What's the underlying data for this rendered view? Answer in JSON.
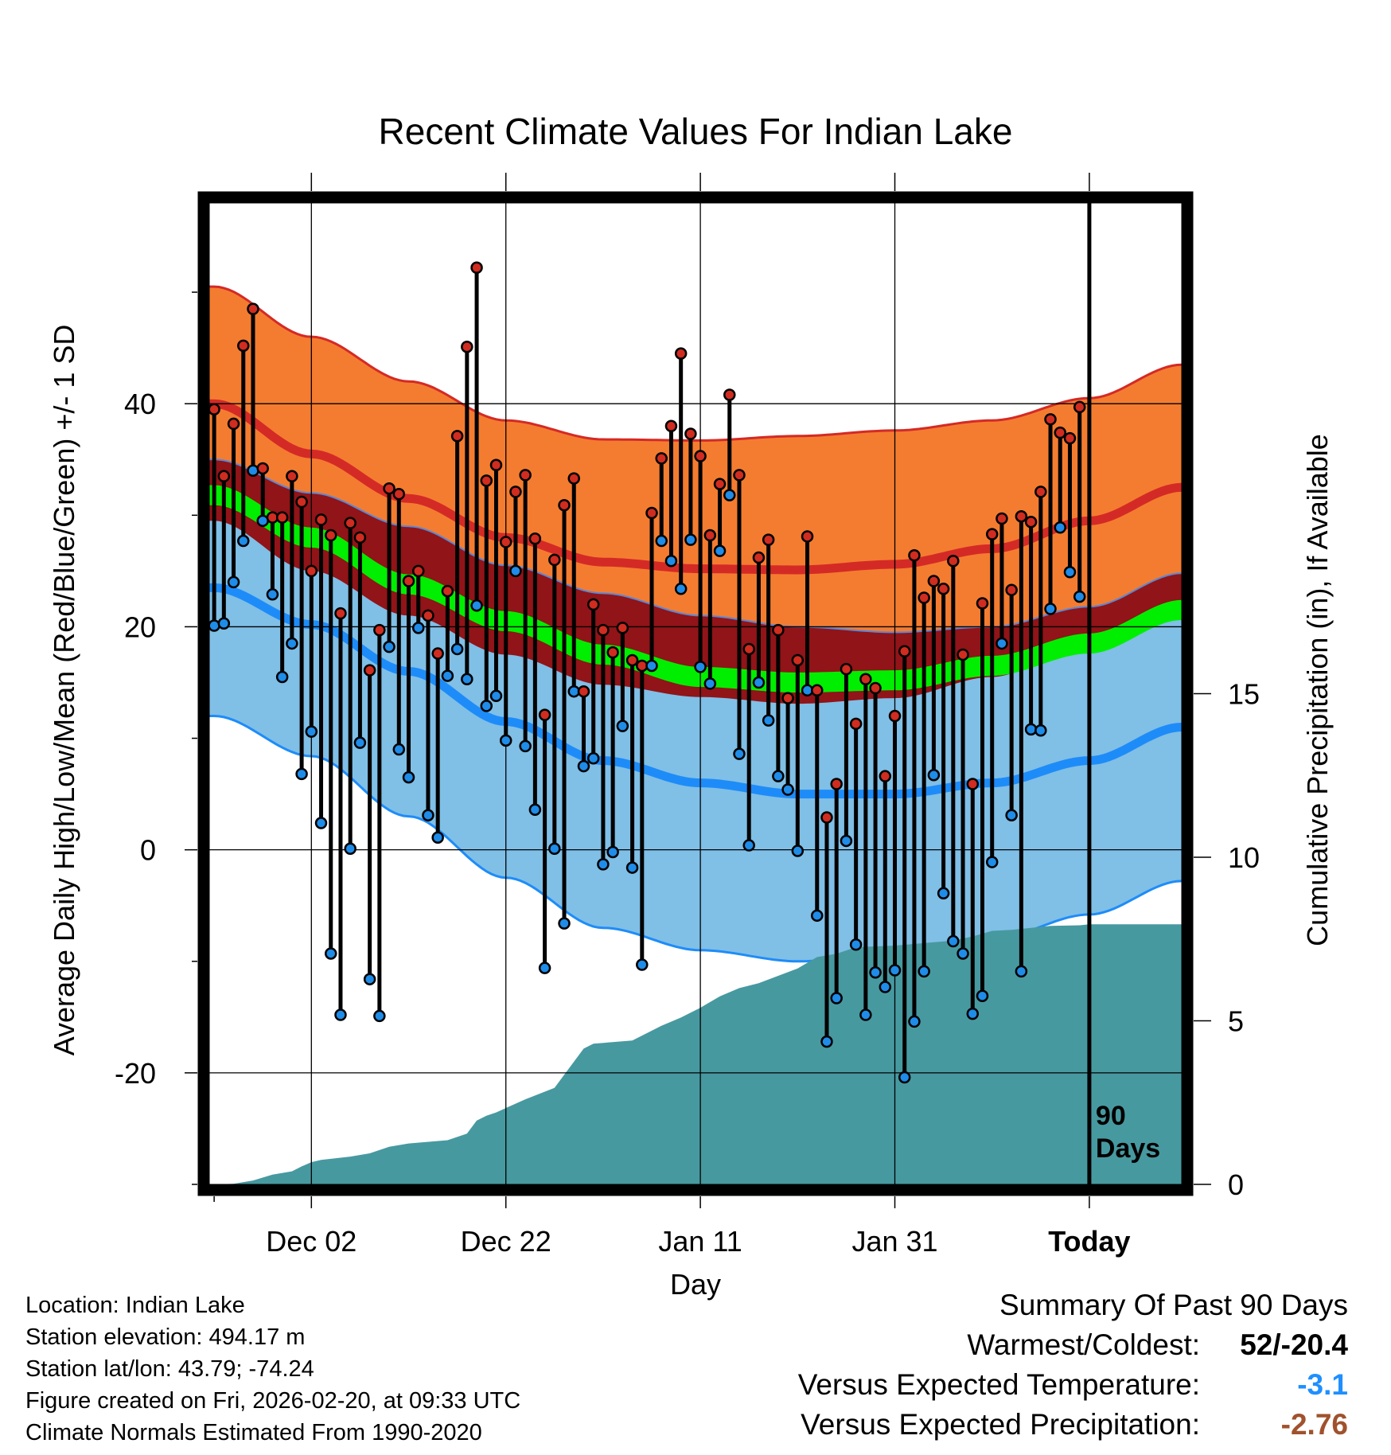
{
  "chart_data": {
    "type": "line",
    "title": "Recent Climate Values For Indian Lake",
    "xlabel": "Day",
    "ylabel_left": "Average Daily High/Low/Mean (Red/Blue/Green) +/- 1 SD",
    "ylabel_right": "Cumulative Precipitation (in), If Available",
    "x_tick_labels": [
      "Dec 02",
      "Dec 22",
      "Jan 11",
      "Jan 31",
      "Today"
    ],
    "x_tick_days": [
      10,
      30,
      50,
      70,
      90
    ],
    "xlim": [
      -0.5,
      99.5
    ],
    "ylim_left": [
      -30,
      58
    ],
    "y_ticks_left": [
      -20,
      0,
      20,
      40
    ],
    "y_ticks_right": [
      0,
      5,
      10,
      15
    ],
    "precip_range": [
      0,
      30
    ],
    "today_marker_label": [
      "90",
      "Days"
    ],
    "normals": {
      "days": [
        0,
        10,
        20,
        30,
        40,
        50,
        60,
        70,
        80,
        90,
        99.5
      ],
      "high_mean": [
        40.0,
        35.5,
        31.5,
        28.0,
        25.8,
        25.2,
        25.1,
        25.6,
        27.0,
        29.5,
        32.5
      ],
      "high_sd": [
        10.5,
        10.5,
        10.5,
        10.5,
        11.0,
        11.5,
        12.0,
        12.0,
        11.5,
        11.0,
        11.0
      ],
      "low_mean": [
        23.5,
        20.2,
        16.0,
        11.5,
        8.0,
        6.0,
        5.0,
        5.0,
        6.0,
        8.0,
        11.0
      ],
      "low_sd": [
        11.5,
        11.8,
        13.0,
        14.0,
        15.0,
        15.0,
        15.0,
        14.5,
        14.0,
        13.8,
        13.8
      ],
      "mean_mean": [
        31.8,
        28.0,
        23.8,
        20.5,
        17.5,
        15.5,
        15.0,
        15.2,
        16.5,
        18.5,
        21.5
      ]
    },
    "daily": {
      "days": [
        0,
        1,
        2,
        3,
        4,
        5,
        6,
        7,
        8,
        9,
        10,
        11,
        12,
        13,
        14,
        15,
        16,
        17,
        18,
        19,
        20,
        21,
        22,
        23,
        24,
        25,
        26,
        27,
        28,
        29,
        30,
        31,
        32,
        33,
        34,
        35,
        36,
        37,
        38,
        39,
        40,
        41,
        42,
        43,
        44,
        45,
        46,
        47,
        48,
        49,
        50,
        51,
        52,
        53,
        54,
        55,
        56,
        57,
        58,
        59,
        60,
        61,
        62,
        63,
        64,
        65,
        66,
        67,
        68,
        69,
        70,
        71,
        72,
        73,
        74,
        75,
        76,
        77,
        78,
        79,
        80,
        81,
        82,
        83,
        84,
        85,
        86,
        87,
        88,
        89
      ],
      "high": [
        39.5,
        33.5,
        38.2,
        45.2,
        48.5,
        34.2,
        29.8,
        29.8,
        33.5,
        31.2,
        25.0,
        29.6,
        28.2,
        21.2,
        29.3,
        28.0,
        16.1,
        19.7,
        32.4,
        31.9,
        24.1,
        25.0,
        21.0,
        17.6,
        23.2,
        37.1,
        45.1,
        52.2,
        33.1,
        34.5,
        27.6,
        32.1,
        33.6,
        27.9,
        12.1,
        26.0,
        30.9,
        33.3,
        14.2,
        22.0,
        19.7,
        17.7,
        19.9,
        17.0,
        16.5,
        30.2,
        35.1,
        38.0,
        44.5,
        37.3,
        35.3,
        28.2,
        32.8,
        40.8,
        33.6,
        18.0,
        26.2,
        27.8,
        19.7,
        13.6,
        17.0,
        28.1,
        14.3,
        2.9,
        5.9,
        16.2,
        11.3,
        15.3,
        14.5,
        6.6,
        12.0,
        17.8,
        26.4,
        22.6,
        24.1,
        23.4,
        25.9,
        17.5,
        5.9,
        22.1,
        28.3,
        29.7,
        23.3,
        29.9,
        29.4,
        32.1,
        38.6,
        37.4,
        36.9,
        39.7
      ],
      "low": [
        20.1,
        20.3,
        24.0,
        27.7,
        34.0,
        29.5,
        22.9,
        15.5,
        18.5,
        6.8,
        10.6,
        2.4,
        -9.3,
        -14.8,
        0.1,
        9.6,
        -11.6,
        -14.9,
        18.2,
        9.0,
        6.5,
        19.9,
        3.1,
        1.1,
        15.6,
        18.0,
        15.3,
        21.9,
        12.9,
        13.8,
        9.8,
        25.0,
        9.3,
        3.6,
        -10.6,
        0.1,
        -6.6,
        14.2,
        7.5,
        8.2,
        -1.3,
        -0.2,
        11.1,
        -1.6,
        -10.3,
        16.5,
        27.7,
        25.9,
        23.4,
        27.8,
        16.4,
        14.9,
        26.8,
        31.8,
        8.6,
        0.4,
        15.0,
        11.6,
        6.6,
        5.4,
        -0.1,
        14.3,
        -5.9,
        -17.2,
        -13.3,
        0.8,
        -8.5,
        -14.8,
        -11.0,
        -12.3,
        -10.8,
        -20.4,
        -15.4,
        -10.9,
        6.7,
        -3.9,
        -8.2,
        -9.3,
        -14.7,
        -13.1,
        -1.1,
        18.5,
        3.1,
        -10.9,
        10.8,
        10.7,
        21.6,
        28.9,
        24.9,
        22.7
      ]
    },
    "precip_cumulative": {
      "days": [
        0,
        2,
        4,
        6,
        8,
        9,
        10,
        11,
        14,
        16,
        18,
        20,
        24,
        26,
        27,
        28,
        29,
        32,
        35,
        38,
        39,
        43,
        46,
        48,
        50,
        52,
        54,
        56,
        60,
        62,
        64,
        66,
        70,
        72,
        76,
        78,
        80,
        82,
        86,
        89,
        90,
        99.5
      ],
      "values": [
        0,
        0.02,
        0.12,
        0.3,
        0.4,
        0.55,
        0.68,
        0.75,
        0.85,
        0.95,
        1.15,
        1.25,
        1.35,
        1.55,
        1.95,
        2.1,
        2.2,
        2.6,
        2.95,
        4.15,
        4.3,
        4.4,
        4.85,
        5.1,
        5.4,
        5.75,
        6.0,
        6.15,
        6.6,
        6.95,
        7.05,
        7.25,
        7.3,
        7.35,
        7.45,
        7.58,
        7.75,
        7.78,
        7.9,
        7.92,
        7.95,
        7.95
      ]
    }
  },
  "info": {
    "location": "Location: Indian Lake",
    "elevation": "Station elevation: 494.17 m",
    "latlon": "Station lat/lon: 43.79; -74.24",
    "created": "Figure created on Fri, 2026-02-20, at 09:33 UTC",
    "normals": "Climate Normals Estimated From 1990-2020"
  },
  "summary": {
    "title": "Summary Of Past 90 Days",
    "warmest_coldest_label": "Warmest/Coldest:",
    "warmest_coldest_value": "52/-20.4",
    "temp_label": "Versus Expected Temperature:",
    "temp_value": "-3.1",
    "temp_color": "#1f8fff",
    "precip_label": "Versus Expected Precipitation:",
    "precip_value": "-2.76",
    "precip_color": "#a0522d"
  },
  "colors": {
    "high_band": "#f47c30",
    "high_line": "#d42a26",
    "low_band": "#80bfe6",
    "low_line": "#1e8cf8",
    "mean_band": "#00ee00",
    "overlap_band": "#901418",
    "precip_fill": "#4799a0",
    "high_marker": "#d02c20",
    "low_marker": "#1e8ce8"
  }
}
